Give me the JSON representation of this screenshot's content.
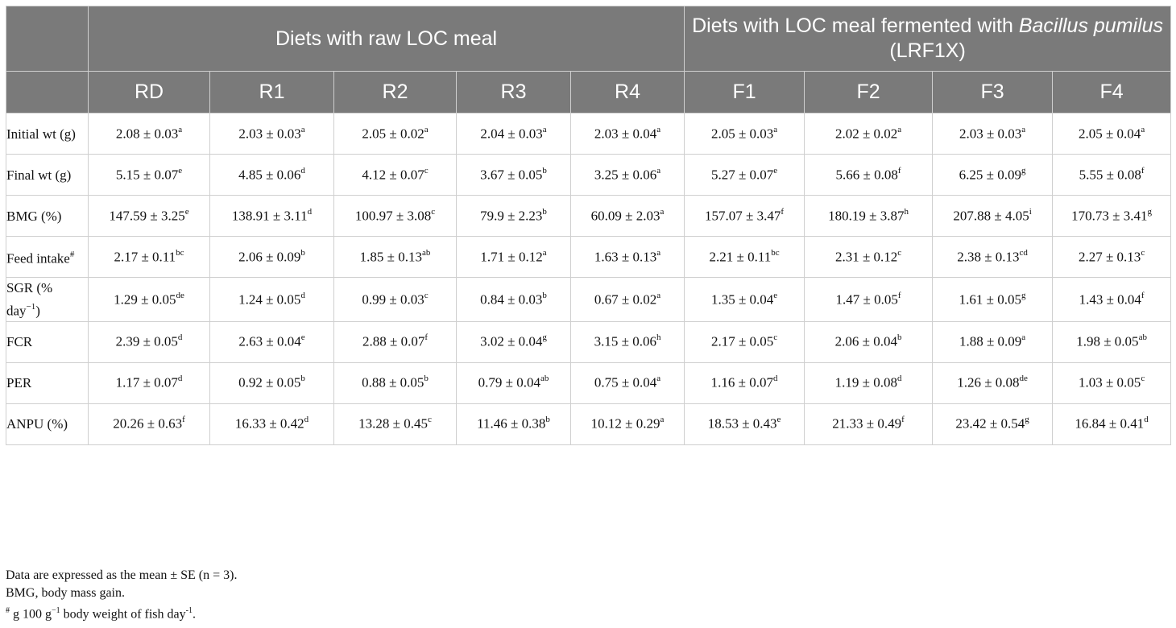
{
  "table": {
    "group_headers": {
      "raw": "Diets with raw LOC meal",
      "fermented_prefix": "Diets with LOC meal fermented with ",
      "fermented_italic": "Bacillus pumilus",
      "fermented_suffix": " (LRF1X)"
    },
    "columns": [
      "RD",
      "R1",
      "R2",
      "R3",
      "R4",
      "F1",
      "F2",
      "F3",
      "F4"
    ],
    "rows": [
      {
        "label": "Initial wt (g)",
        "label_sup": "",
        "cells": [
          {
            "v": "2.08 ± 0.03",
            "s": "a"
          },
          {
            "v": "2.03 ± 0.03",
            "s": "a"
          },
          {
            "v": "2.05 ± 0.02",
            "s": "a"
          },
          {
            "v": "2.04 ± 0.03",
            "s": "a"
          },
          {
            "v": "2.03 ± 0.04",
            "s": "a"
          },
          {
            "v": "2.05 ± 0.03",
            "s": "a"
          },
          {
            "v": "2.02 ± 0.02",
            "s": "a"
          },
          {
            "v": "2.03 ± 0.03",
            "s": "a"
          },
          {
            "v": "2.05 ± 0.04",
            "s": "a"
          }
        ]
      },
      {
        "label": "Final wt (g)",
        "label_sup": "",
        "cells": [
          {
            "v": "5.15 ± 0.07",
            "s": "e"
          },
          {
            "v": "4.85 ± 0.06",
            "s": "d"
          },
          {
            "v": "4.12 ± 0.07",
            "s": "c"
          },
          {
            "v": "3.67 ± 0.05",
            "s": "b"
          },
          {
            "v": "3.25 ± 0.06",
            "s": "a"
          },
          {
            "v": "5.27 ± 0.07",
            "s": "e"
          },
          {
            "v": "5.66 ± 0.08",
            "s": "f"
          },
          {
            "v": "6.25 ± 0.09",
            "s": "g"
          },
          {
            "v": "5.55 ± 0.08",
            "s": "f"
          }
        ]
      },
      {
        "label": "BMG (%)",
        "label_sup": "",
        "cells": [
          {
            "v": "147.59 ± 3.25",
            "s": "e"
          },
          {
            "v": "138.91 ± 3.11",
            "s": "d"
          },
          {
            "v": "100.97 ± 3.08",
            "s": "c"
          },
          {
            "v": "79.9 ± 2.23",
            "s": "b"
          },
          {
            "v": "60.09 ± 2.03",
            "s": "a"
          },
          {
            "v": "157.07 ± 3.47",
            "s": "f"
          },
          {
            "v": "180.19 ± 3.87",
            "s": "h"
          },
          {
            "v": "207.88 ± 4.05",
            "s": "i"
          },
          {
            "v": "170.73 ± 3.41",
            "s": "g"
          }
        ]
      },
      {
        "label": "Feed intake",
        "label_sup": "#",
        "cells": [
          {
            "v": "2.17 ± 0.11",
            "s": "bc"
          },
          {
            "v": "2.06 ± 0.09",
            "s": "b"
          },
          {
            "v": "1.85 ± 0.13",
            "s": "ab"
          },
          {
            "v": "1.71 ± 0.12",
            "s": "a"
          },
          {
            "v": "1.63 ± 0.13",
            "s": "a"
          },
          {
            "v": "2.21 ± 0.11",
            "s": "bc"
          },
          {
            "v": "2.31 ± 0.12",
            "s": "c"
          },
          {
            "v": "2.38 ± 0.13",
            "s": "cd"
          },
          {
            "v": "2.27 ± 0.13",
            "s": "c"
          }
        ]
      },
      {
        "label": "SGR (% day",
        "label_sup": "−1",
        "label_after": ")",
        "cells": [
          {
            "v": "1.29 ± 0.05",
            "s": "de"
          },
          {
            "v": "1.24 ± 0.05",
            "s": "d"
          },
          {
            "v": "0.99 ± 0.03",
            "s": "c"
          },
          {
            "v": "0.84 ± 0.03",
            "s": "b"
          },
          {
            "v": "0.67 ± 0.02",
            "s": "a"
          },
          {
            "v": "1.35 ± 0.04",
            "s": "e"
          },
          {
            "v": "1.47 ± 0.05",
            "s": "f"
          },
          {
            "v": "1.61 ± 0.05",
            "s": "g"
          },
          {
            "v": "1.43 ± 0.04",
            "s": "f"
          }
        ]
      },
      {
        "label": "FCR",
        "label_sup": "",
        "cells": [
          {
            "v": "2.39 ± 0.05",
            "s": "d"
          },
          {
            "v": "2.63 ± 0.04",
            "s": "e"
          },
          {
            "v": "2.88 ± 0.07",
            "s": "f"
          },
          {
            "v": "3.02 ± 0.04",
            "s": "g"
          },
          {
            "v": "3.15 ± 0.06",
            "s": "h"
          },
          {
            "v": "2.17 ± 0.05",
            "s": "c"
          },
          {
            "v": "2.06 ± 0.04",
            "s": "b"
          },
          {
            "v": "1.88 ± 0.09",
            "s": "a"
          },
          {
            "v": "1.98 ± 0.05",
            "s": "ab"
          }
        ]
      },
      {
        "label": "PER",
        "label_sup": "",
        "cells": [
          {
            "v": "1.17 ± 0.07",
            "s": "d"
          },
          {
            "v": "0.92 ± 0.05",
            "s": "b"
          },
          {
            "v": "0.88 ± 0.05",
            "s": "b"
          },
          {
            "v": "0.79 ± 0.04",
            "s": "ab"
          },
          {
            "v": "0.75 ± 0.04",
            "s": "a"
          },
          {
            "v": "1.16 ± 0.07",
            "s": "d"
          },
          {
            "v": "1.19 ± 0.08",
            "s": "d"
          },
          {
            "v": "1.26 ± 0.08",
            "s": "de"
          },
          {
            "v": "1.03 ± 0.05",
            "s": "c"
          }
        ]
      },
      {
        "label": "ANPU (%)",
        "label_sup": "",
        "cells": [
          {
            "v": "20.26 ± 0.63",
            "s": "f"
          },
          {
            "v": "16.33 ± 0.42",
            "s": "d"
          },
          {
            "v": "13.28 ± 0.45",
            "s": "c"
          },
          {
            "v": "11.46 ± 0.38",
            "s": "b"
          },
          {
            "v": "10.12 ± 0.29",
            "s": "a"
          },
          {
            "v": "18.53 ± 0.43",
            "s": "e"
          },
          {
            "v": "21.33 ± 0.49",
            "s": "f"
          },
          {
            "v": "23.42 ± 0.54",
            "s": "g"
          },
          {
            "v": "16.84 ± 0.41",
            "s": "d"
          }
        ]
      }
    ]
  },
  "notes": {
    "line1": "Data are expressed as the mean ± SE (n = 3).",
    "line2": "BMG, body mass gain.",
    "line3_mark": "#",
    "line3_a": " g 100 g",
    "line3_sup1": "−1",
    "line3_b": " body weight of fish day",
    "line3_sup2": "-1",
    "line3_c": "."
  },
  "colors": {
    "header_bg": "#7a7a7a",
    "header_text": "#ffffff",
    "grid": "#cfcfcf"
  }
}
